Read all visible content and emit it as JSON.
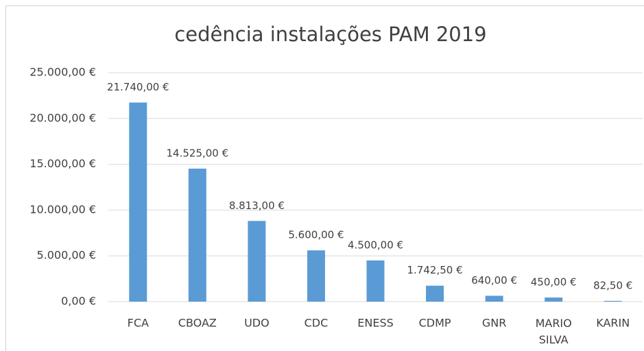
{
  "chart_data": {
    "type": "bar",
    "title": "cedência instalações PAM 2019",
    "categories": [
      "FCA",
      "CBOAZ",
      "UDO",
      "CDC",
      "ENESS",
      "CDMP",
      "GNR",
      "MARIO SILVA",
      "KARIN"
    ],
    "values": [
      21740,
      14525,
      8813,
      5600,
      4500,
      1742.5,
      640,
      450,
      82.5
    ],
    "value_labels": [
      "21.740,00 €",
      "14.525,00 €",
      "8.813,00 €",
      "5.600,00 €",
      "4.500,00 €",
      "1.742,50 €",
      "640,00 €",
      "450,00 €",
      "82,50 €"
    ],
    "color": "#5b9bd5",
    "ylim": [
      0,
      25000
    ],
    "yticks": [
      {
        "value": 0,
        "label": "0,00 €"
      },
      {
        "value": 5000,
        "label": "5.000,00 €"
      },
      {
        "value": 10000,
        "label": "10.000,00 €"
      },
      {
        "value": 15000,
        "label": "15.000,00 €"
      },
      {
        "value": 20000,
        "label": "20.000,00 €"
      },
      {
        "value": 25000,
        "label": "25.000,00 €"
      }
    ],
    "grid": true
  }
}
